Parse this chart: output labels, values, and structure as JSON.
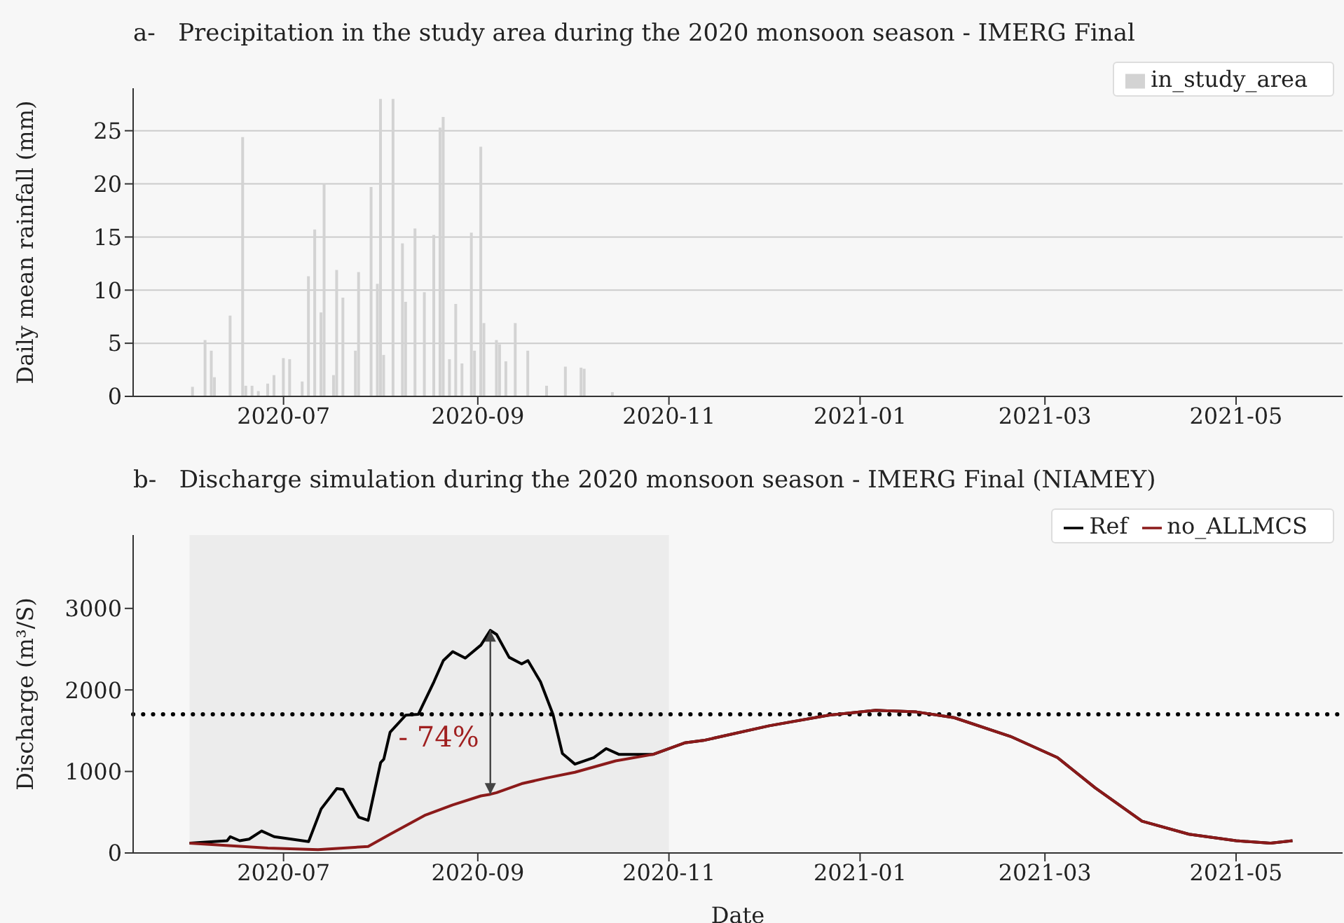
{
  "chart_data": [
    {
      "type": "bar",
      "title": "a-   Precipitation in the study area during the 2020 monsoon season - IMERG Final",
      "ylabel": "Daily mean rainfall (mm)",
      "series": [
        {
          "name": "in_study_area",
          "color": "#d3d3d3",
          "x": [
            "2020-06-02",
            "2020-06-06",
            "2020-06-08",
            "2020-06-09",
            "2020-06-14",
            "2020-06-18",
            "2020-06-19",
            "2020-06-21",
            "2020-06-23",
            "2020-06-26",
            "2020-06-28",
            "2020-07-01",
            "2020-07-03",
            "2020-07-07",
            "2020-07-09",
            "2020-07-11",
            "2020-07-13",
            "2020-07-14",
            "2020-07-17",
            "2020-07-18",
            "2020-07-20",
            "2020-07-24",
            "2020-07-25",
            "2020-07-29",
            "2020-07-31",
            "2020-08-01",
            "2020-08-02",
            "2020-08-05",
            "2020-08-08",
            "2020-08-09",
            "2020-08-12",
            "2020-08-15",
            "2020-08-18",
            "2020-08-20",
            "2020-08-21",
            "2020-08-23",
            "2020-08-25",
            "2020-08-27",
            "2020-08-30",
            "2020-08-31",
            "2020-09-02",
            "2020-09-03",
            "2020-09-07",
            "2020-09-08",
            "2020-09-10",
            "2020-09-13",
            "2020-09-17",
            "2020-09-23",
            "2020-09-29",
            "2020-10-04",
            "2020-10-05",
            "2020-10-14"
          ],
          "values": [
            0.9,
            5.3,
            4.3,
            1.8,
            7.6,
            24.4,
            1,
            1,
            0.5,
            1.2,
            2,
            3.6,
            3.5,
            1.4,
            11.3,
            15.7,
            7.9,
            20,
            2,
            11.9,
            9.3,
            4.3,
            11.7,
            19.7,
            10.6,
            28,
            3.9,
            28,
            14.4,
            8.9,
            15.8,
            9.8,
            15.2,
            25.3,
            26.3,
            3.5,
            8.7,
            3.1,
            15.4,
            4.3,
            23.5,
            6.9,
            5.3,
            4.9,
            3.3,
            6.9,
            4.3,
            1,
            2.8,
            2.7,
            2.6,
            0.4
          ]
        }
      ],
      "xlim": [
        "2020-05-14",
        "2021-06-04"
      ],
      "xticks": [
        "2020-07",
        "2020-09",
        "2020-11",
        "2021-01",
        "2021-03",
        "2021-05"
      ],
      "ylim": [
        0,
        29
      ],
      "yticks": [
        0,
        5,
        10,
        15,
        20,
        25
      ],
      "grid": "y",
      "legend": "top right"
    },
    {
      "type": "line",
      "title": "b-   Discharge simulation during the 2020 monsoon season - IMERG Final (NIAMEY)",
      "xlabel": "Date",
      "ylabel": "Discharge (m³/S)",
      "series": [
        {
          "name": "Ref",
          "color": "#000000",
          "x": [
            "2020-06-01",
            "2020-06-13",
            "2020-06-14",
            "2020-06-17",
            "2020-06-20",
            "2020-06-24",
            "2020-06-28",
            "2020-07-09",
            "2020-07-13",
            "2020-07-18",
            "2020-07-20",
            "2020-07-25",
            "2020-07-28",
            "2020-08-01",
            "2020-08-02",
            "2020-08-04",
            "2020-08-09",
            "2020-08-13",
            "2020-08-18",
            "2020-08-21",
            "2020-08-24",
            "2020-08-28",
            "2020-09-02",
            "2020-09-05",
            "2020-09-07",
            "2020-09-11",
            "2020-09-15",
            "2020-09-17",
            "2020-09-21",
            "2020-09-25",
            "2020-09-28",
            "2020-10-02",
            "2020-10-08",
            "2020-10-12",
            "2020-10-16",
            "2020-10-27",
            "2020-11-06",
            "2020-11-12",
            "2020-12-03",
            "2020-12-22",
            "2021-01-06",
            "2021-01-19",
            "2021-01-31",
            "2021-02-18",
            "2021-03-05",
            "2021-03-17",
            "2021-04-01",
            "2021-04-16",
            "2021-05-01",
            "2021-05-12",
            "2021-05-19"
          ],
          "values": [
            120,
            150,
            200,
            150,
            170,
            270,
            200,
            140,
            540,
            790,
            780,
            440,
            400,
            1110,
            1150,
            1480,
            1690,
            1700,
            2100,
            2360,
            2470,
            2390,
            2550,
            2730,
            2680,
            2400,
            2320,
            2360,
            2100,
            1700,
            1220,
            1090,
            1170,
            1280,
            1210,
            1210,
            1350,
            1380,
            1560,
            1690,
            1750,
            1730,
            1660,
            1430,
            1170,
            800,
            390,
            230,
            150,
            120,
            150
          ]
        },
        {
          "name": "no_ALLMCS",
          "color": "#8b1a1a",
          "x": [
            "2020-06-01",
            "2020-06-26",
            "2020-07-12",
            "2020-07-28",
            "2020-08-04",
            "2020-08-15",
            "2020-08-24",
            "2020-09-02",
            "2020-09-05",
            "2020-09-07",
            "2020-09-15",
            "2020-09-23",
            "2020-10-02",
            "2020-10-15",
            "2020-10-27",
            "2020-11-06",
            "2020-11-12",
            "2020-12-03",
            "2020-12-22",
            "2021-01-06",
            "2021-01-19",
            "2021-01-31",
            "2021-02-18",
            "2021-03-05",
            "2021-03-17",
            "2021-04-01",
            "2021-04-16",
            "2021-05-01",
            "2021-05-12",
            "2021-05-19"
          ],
          "values": [
            120,
            60,
            40,
            80,
            230,
            460,
            590,
            700,
            720,
            740,
            850,
            920,
            990,
            1130,
            1210,
            1350,
            1380,
            1560,
            1690,
            1750,
            1730,
            1660,
            1430,
            1170,
            800,
            390,
            230,
            150,
            120,
            150
          ]
        }
      ],
      "xlim": [
        "2020-05-14",
        "2021-06-04"
      ],
      "xticks": [
        "2020-07",
        "2020-09",
        "2020-11",
        "2021-01",
        "2021-03",
        "2021-05"
      ],
      "ylim": [
        0,
        3900
      ],
      "yticks": [
        0,
        1000,
        2000,
        3000
      ],
      "grid": false,
      "legend": "top right",
      "ref_lines": [
        {
          "axis": "y",
          "value": 1700,
          "color": "#000000",
          "line_style": "dotted"
        }
      ],
      "bands": [
        {
          "axis": "x",
          "from": "2020-06-01",
          "to": "2020-11-01",
          "color": "#ececec"
        }
      ],
      "annotations": [
        {
          "text": "- 74%",
          "x": "2020-09-05",
          "y": 720
        }
      ]
    }
  ]
}
